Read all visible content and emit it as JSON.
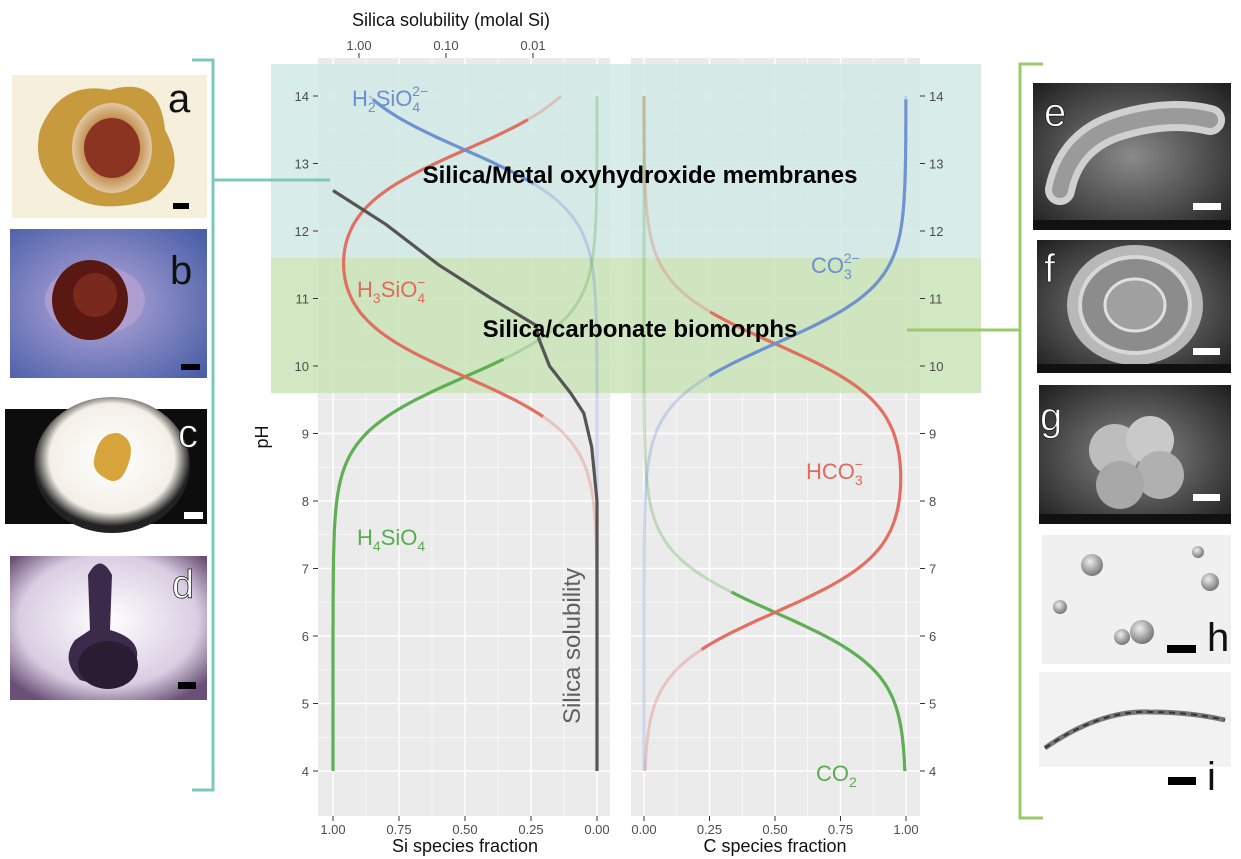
{
  "chart_data": {
    "type": "line",
    "top_axis_title": "Silica solubility (molal Si)",
    "top_axis_ticks": [
      "1.00",
      "0.10",
      "0.01"
    ],
    "y_label": "pH",
    "y_ticks": [
      4,
      5,
      6,
      7,
      8,
      9,
      10,
      11,
      12,
      13,
      14
    ],
    "ylim": [
      4,
      14
    ],
    "left_panel": {
      "xlabel": "Si species fraction",
      "x_ticks": [
        "1.00",
        "0.75",
        "0.50",
        "0.25",
        "0.00"
      ],
      "x_reversed": true,
      "xlim": [
        0,
        1
      ],
      "pKa": [
        9.84,
        13.2
      ],
      "species": [
        {
          "label": "H4SiO4",
          "formula": "H",
          "sub1": "4",
          "rest": "SiO",
          "sub2": "4",
          "sup": "",
          "color": "#5aad4e"
        },
        {
          "label": "H3SiO4-",
          "formula": "H",
          "sub1": "3",
          "rest": "SiO",
          "sub2": "4",
          "sup": "−",
          "color": "#e06b5c"
        },
        {
          "label": "H2SiO4 2-",
          "formula": "H",
          "sub1": "2",
          "rest": "SiO",
          "sub2": "4",
          "sup": "2−",
          "color": "#6b8fd0"
        }
      ]
    },
    "right_panel": {
      "xlabel": "C species fraction",
      "x_ticks": [
        "0.00",
        "0.25",
        "0.50",
        "0.75",
        "1.00"
      ],
      "xlim": [
        0,
        1
      ],
      "pKa": [
        6.35,
        10.33
      ],
      "species": [
        {
          "label": "CO2",
          "formula": "CO",
          "sub1": "2",
          "sup": "",
          "color": "#5aad4e"
        },
        {
          "label": "HCO3-",
          "formula": "HCO",
          "sub1": "3",
          "sup": "−",
          "color": "#e06b5c"
        },
        {
          "label": "CO3 2-",
          "formula": "CO",
          "sub1": "3",
          "sup": "2−",
          "color": "#6b8fd0"
        }
      ]
    },
    "solubility_curve": {
      "label": "Silica solubility",
      "color": "#555555",
      "points": [
        [
          1.0,
          4.0
        ],
        [
          1.0,
          8.0
        ],
        [
          0.98,
          8.8
        ],
        [
          0.95,
          9.3
        ],
        [
          0.9,
          9.6
        ],
        [
          0.82,
          10.0
        ],
        [
          0.78,
          10.4
        ],
        [
          0.77,
          10.6
        ],
        [
          0.6,
          11.0
        ],
        [
          0.4,
          11.5
        ],
        [
          0.2,
          12.1
        ],
        [
          0.0,
          12.6
        ]
      ]
    },
    "regions": [
      {
        "label": "Silica/Metal oxyhydroxide membranes",
        "ph_range": [
          11.6,
          14.5
        ],
        "color": "#cfe9e4"
      },
      {
        "label": "Silica/carbonate biomorphs",
        "ph_range": [
          9.6,
          11.6
        ],
        "color": "#c8e3b4"
      }
    ]
  },
  "photos_left": [
    "a",
    "b",
    "c",
    "d"
  ],
  "photos_right": [
    "e",
    "f",
    "g",
    "h",
    "i"
  ],
  "colors": {
    "teal_bracket": "#7fc7bc",
    "green_bracket": "#9cc96b"
  }
}
